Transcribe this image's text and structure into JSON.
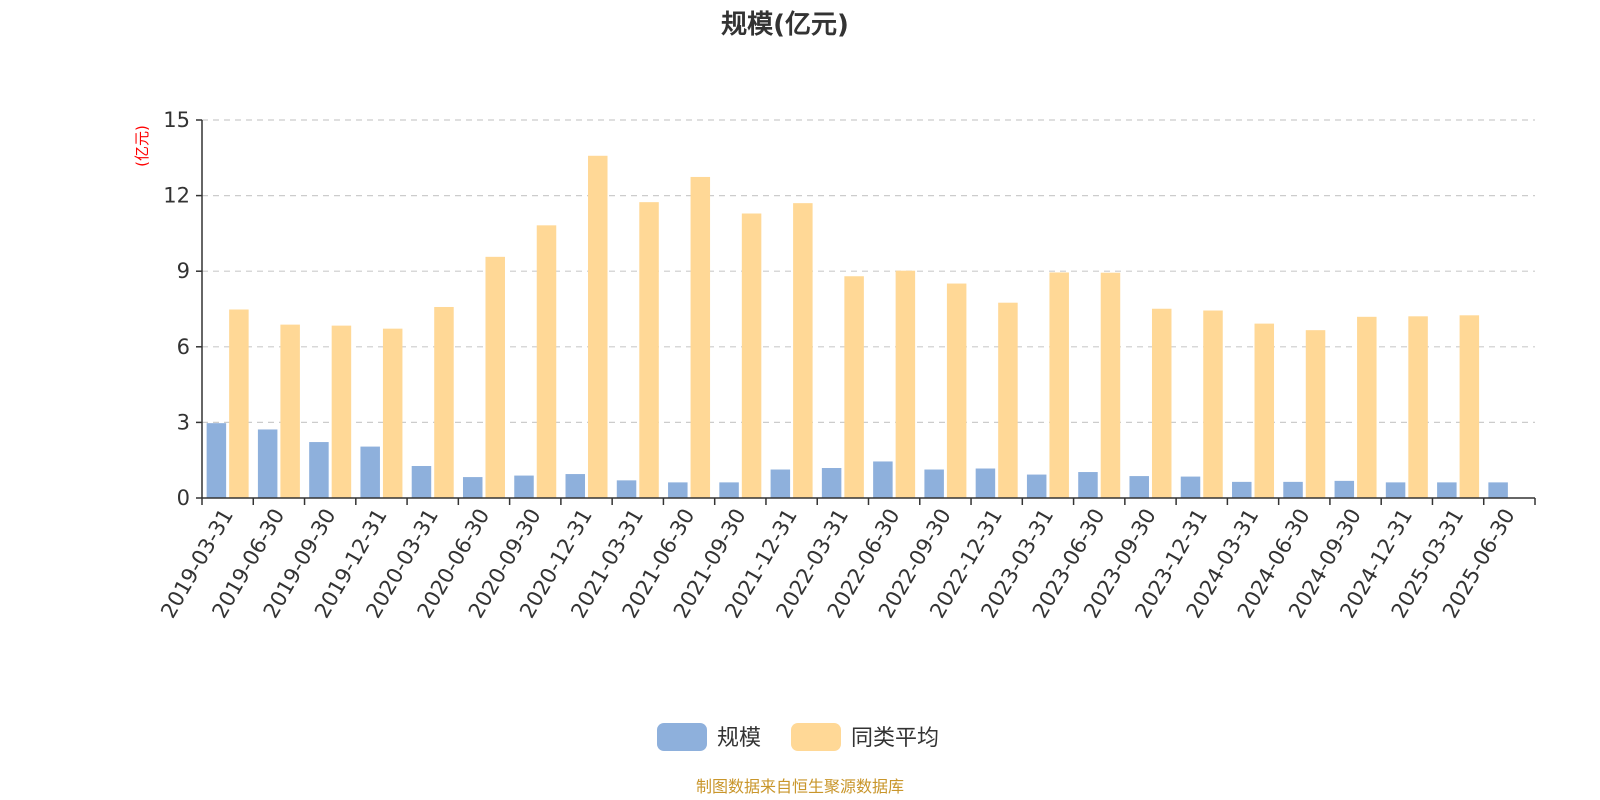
{
  "chart_data": {
    "type": "bar",
    "title": "规模(亿元)",
    "ylabel": "(亿元)",
    "xlabel": "",
    "ylim": [
      0,
      15
    ],
    "yticks": [
      0,
      3,
      6,
      9,
      12,
      15
    ],
    "grid": true,
    "legend_position": "bottom",
    "categories": [
      "2019-03-31",
      "2019-06-30",
      "2019-09-30",
      "2019-12-31",
      "2020-03-31",
      "2020-06-30",
      "2020-09-30",
      "2020-12-31",
      "2021-03-31",
      "2021-06-30",
      "2021-09-30",
      "2021-12-31",
      "2022-03-31",
      "2022-06-30",
      "2022-09-30",
      "2022-12-31",
      "2023-03-31",
      "2023-06-30",
      "2023-09-30",
      "2023-12-31",
      "2024-03-31",
      "2024-06-30",
      "2024-09-30",
      "2024-12-31",
      "2025-03-31",
      "2025-06-30"
    ],
    "series": [
      {
        "name": "规模",
        "color": "#8eb0dc",
        "values": [
          2.97,
          2.72,
          2.22,
          2.04,
          1.27,
          0.83,
          0.89,
          0.95,
          0.7,
          0.62,
          0.62,
          1.13,
          1.19,
          1.45,
          1.13,
          1.17,
          0.93,
          1.03,
          0.87,
          0.85,
          0.64,
          0.64,
          0.68,
          0.62,
          0.62,
          0.62
        ]
      },
      {
        "name": "同类平均",
        "color": "#ffd896",
        "values": [
          7.48,
          6.88,
          6.84,
          6.72,
          7.58,
          9.57,
          10.82,
          13.58,
          11.74,
          12.74,
          11.29,
          11.7,
          8.8,
          9.02,
          8.51,
          7.75,
          8.95,
          8.94,
          7.51,
          7.44,
          6.92,
          6.66,
          7.19,
          7.21,
          7.25,
          null
        ]
      }
    ]
  },
  "source_note": "制图数据来自恒生聚源数据库"
}
